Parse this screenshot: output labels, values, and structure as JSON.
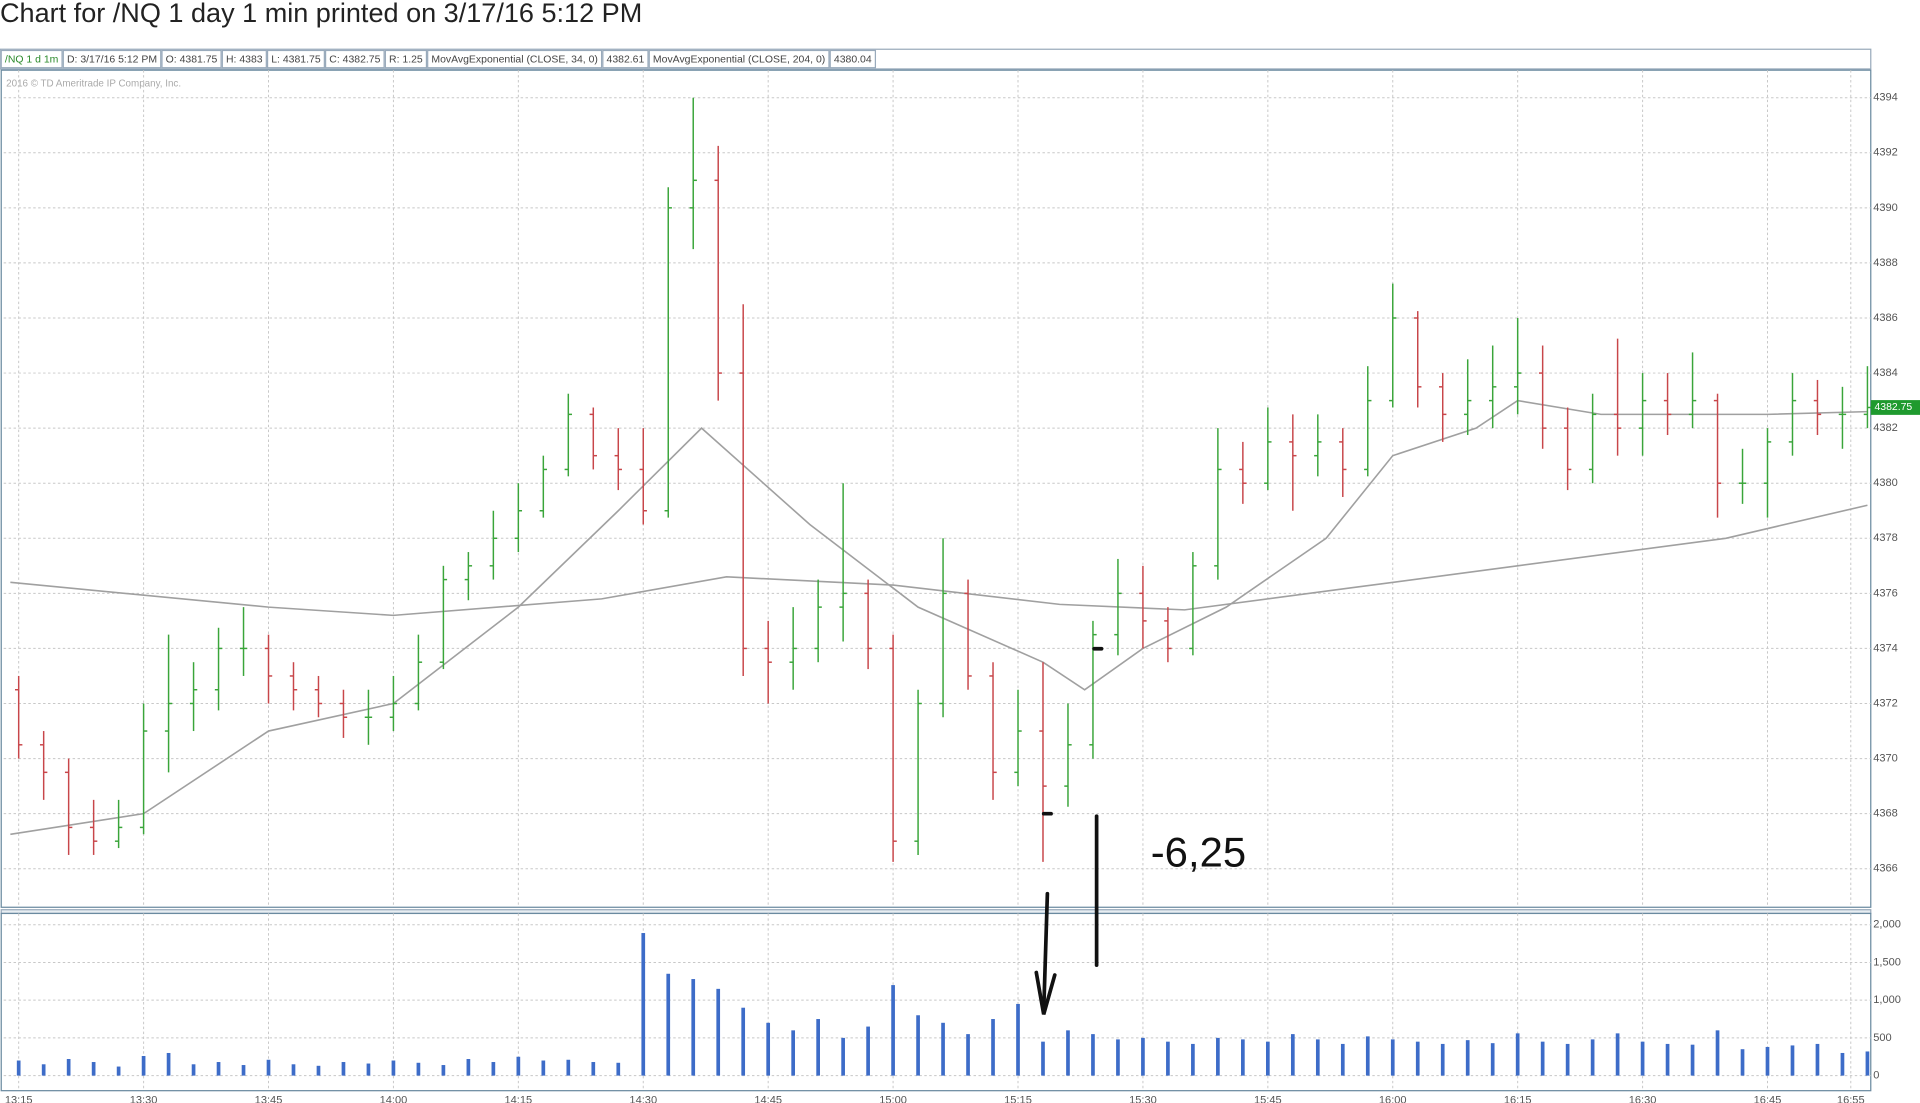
{
  "chart_data": [
    {
      "type": "ohlc",
      "title": "Chart for /NQ 1 day 1 min printed on 3/17/16 5:12 PM",
      "legend_boxes": [
        "/NQ 1 d 1m",
        "D: 3/17/16 5:12 PM",
        "O: 4381.75",
        "H: 4383",
        "L: 4381.75",
        "C: 4382.75",
        "R: 1.25",
        "MovAvgExponential (CLOSE, 34, 0)",
        "4382.61",
        "MovAvgExponential (CLOSE, 204, 0)",
        "4380.04"
      ],
      "copyright": "2016 © TD Ameritrade IP Company, Inc.",
      "annotation": "-6,25",
      "last_price": {
        "value": 4382.75,
        "label": "4382.75"
      },
      "up_color": "#3aa53a",
      "down_color": "#c8464a",
      "line_color": "#a0a0a0",
      "x": [
        795,
        798,
        801,
        804,
        807,
        810,
        813,
        816,
        819,
        822,
        825,
        828,
        831,
        834,
        837,
        840,
        843,
        846,
        849,
        852,
        855,
        858,
        861,
        864,
        867,
        870,
        873,
        876,
        879,
        882,
        885,
        888,
        891,
        894,
        897,
        900,
        903,
        906,
        909,
        912,
        915,
        918,
        921,
        924,
        927,
        930,
        933,
        936,
        939,
        942,
        945,
        948,
        951,
        954,
        957,
        960,
        963,
        966,
        969,
        972,
        975,
        978,
        981,
        984,
        987,
        990,
        993,
        996,
        999,
        1002,
        1005,
        1008,
        1011,
        1014,
        1017
      ],
      "open": [
        4372.5,
        4370.5,
        4369.5,
        4367.5,
        4367,
        4367.5,
        4371,
        4372,
        4372.5,
        4374,
        4374,
        4373,
        4372.5,
        4372,
        4371.5,
        4371.5,
        4372,
        4373.5,
        4376.5,
        4377,
        4378,
        4379,
        4380.5,
        4382.5,
        4381,
        4380.5,
        4379,
        4390,
        4391,
        4384,
        4374,
        4373.5,
        4374,
        4375.5,
        4376,
        4374,
        4367,
        4372,
        4376,
        4373,
        4369.5,
        4371,
        4369,
        4370.5,
        4374.5,
        4376,
        4375,
        4374,
        4377,
        4380.5,
        4380,
        4381.5,
        4381,
        4381.5,
        4380.5,
        4383,
        4386,
        4383.5,
        4382.5,
        4383,
        4383.5,
        4384,
        4382,
        4380.5,
        4382.5,
        4382,
        4383,
        4382.5,
        4383,
        4380,
        4380,
        4381.5,
        4383,
        4382.5,
        4382.5
      ],
      "high": [
        4373,
        4371,
        4370,
        4368.5,
        4368.5,
        4372,
        4374.5,
        4373.5,
        4374.75,
        4375.5,
        4374.5,
        4373.5,
        4373,
        4372.5,
        4372.5,
        4373,
        4374.5,
        4377,
        4377.5,
        4379,
        4380,
        4381,
        4383.25,
        4382.75,
        4382,
        4382,
        4390.75,
        4394,
        4392.25,
        4386.5,
        4375,
        4375.5,
        4376.5,
        4380,
        4376.5,
        4374.5,
        4372.5,
        4378,
        4376.5,
        4373.5,
        4372.5,
        4373.5,
        4372,
        4375,
        4377.25,
        4377,
        4375.5,
        4377.5,
        4382,
        4381.5,
        4382.75,
        4382.5,
        4382.5,
        4382,
        4384.25,
        4387.25,
        4386.25,
        4384,
        4384.5,
        4385,
        4386,
        4385,
        4382.75,
        4383.25,
        4385.25,
        4384,
        4384,
        4384.75,
        4383.25,
        4381.25,
        4382,
        4384,
        4383.75,
        4383.5,
        4384.25
      ],
      "low": [
        4370,
        4368.5,
        4366.5,
        4366.5,
        4366.75,
        4367.25,
        4369.5,
        4371,
        4371.75,
        4373,
        4372,
        4371.75,
        4371.5,
        4370.75,
        4370.5,
        4371,
        4371.75,
        4373.25,
        4375.75,
        4376.5,
        4377.5,
        4378.75,
        4380.25,
        4380.5,
        4379.75,
        4378.5,
        4378.75,
        4388.5,
        4383,
        4373,
        4372,
        4372.5,
        4373.5,
        4374.25,
        4373.25,
        4366.25,
        4366.5,
        4371.5,
        4372.5,
        4368.5,
        4369,
        4366.25,
        4368.25,
        4370,
        4373.75,
        4374,
        4373.5,
        4373.75,
        4376.5,
        4379.25,
        4379.75,
        4379,
        4380.25,
        4379.5,
        4380.25,
        4382.75,
        4382.75,
        4381.5,
        4381.75,
        4382,
        4382.5,
        4381.25,
        4379.75,
        4380,
        4381,
        4381,
        4381.75,
        4382,
        4378.75,
        4379.25,
        4378.75,
        4381,
        4381.75,
        4381.25,
        4382
      ],
      "close": [
        4370.5,
        4369.5,
        4367.5,
        4367,
        4367.5,
        4371,
        4372,
        4372.5,
        4374,
        4374,
        4373,
        4372.5,
        4372,
        4371.5,
        4371.5,
        4372,
        4373.5,
        4376.5,
        4377,
        4378,
        4379,
        4380.5,
        4382.5,
        4381,
        4380.5,
        4379,
        4390,
        4391,
        4384,
        4374,
        4373.5,
        4374,
        4375.5,
        4376,
        4374,
        4367,
        4372,
        4376,
        4373,
        4369.5,
        4371,
        4369,
        4370.5,
        4374.5,
        4376,
        4375,
        4374,
        4377,
        4380.5,
        4380,
        4381.5,
        4381,
        4381.5,
        4380.5,
        4383,
        4386,
        4383.5,
        4382.5,
        4383,
        4383.5,
        4384,
        4382,
        4380.5,
        4382.5,
        4382,
        4383,
        4382.5,
        4383,
        4380,
        4380,
        4381.5,
        4383,
        4382.5,
        4382.5,
        4382.75
      ],
      "lines": [
        {
          "name": "MovAvgExponential (CLOSE, 34, 0)",
          "x": [
            794,
            810,
            825,
            840,
            855,
            867,
            877,
            890,
            903,
            918,
            923,
            930,
            940,
            952,
            960,
            970,
            975,
            985,
            1005,
            1017
          ],
          "values": [
            4367.25,
            4368,
            4371,
            4372,
            4375.5,
            4379,
            4382,
            4378.5,
            4375.5,
            4373.5,
            4372.5,
            4374,
            4375.5,
            4378,
            4381,
            4382,
            4383,
            4382.5,
            4382.5,
            4382.6
          ]
        },
        {
          "name": "MovAvgExponential (CLOSE, 204, 0)",
          "x": [
            794,
            825,
            840,
            865,
            880,
            900,
            920,
            935,
            955,
            975,
            1000,
            1017
          ],
          "values": [
            4376.4,
            4375.5,
            4375.2,
            4375.8,
            4376.6,
            4376.3,
            4375.6,
            4375.4,
            4376.2,
            4377,
            4378,
            4379.2
          ]
        }
      ],
      "xlim": [
        793.2,
        1017.4
      ],
      "xticks": [
        {
          "value": 795,
          "label": "13:15"
        },
        {
          "value": 810,
          "label": "13:30"
        },
        {
          "value": 825,
          "label": "13:45"
        },
        {
          "value": 840,
          "label": "14:00"
        },
        {
          "value": 855,
          "label": "14:15"
        },
        {
          "value": 870,
          "label": "14:30"
        },
        {
          "value": 885,
          "label": "14:45"
        },
        {
          "value": 900,
          "label": "15:00"
        },
        {
          "value": 915,
          "label": "15:15"
        },
        {
          "value": 930,
          "label": "15:30"
        },
        {
          "value": 945,
          "label": "15:45"
        },
        {
          "value": 960,
          "label": "16:00"
        },
        {
          "value": 975,
          "label": "16:15"
        },
        {
          "value": 990,
          "label": "16:30"
        },
        {
          "value": 1005,
          "label": "16:45"
        },
        {
          "value": 1015,
          "label": "16:55"
        }
      ],
      "ylim": [
        4364.6,
        4395
      ],
      "yticks": [
        4366,
        4368,
        4370,
        4372,
        4374,
        4376,
        4378,
        4380,
        4382,
        4384,
        4386,
        4388,
        4390,
        4392,
        4394
      ],
      "grid": true
    },
    {
      "type": "bar",
      "color": "#3d6cc8",
      "values": [
        200,
        150,
        220,
        180,
        120,
        260,
        300,
        150,
        180,
        140,
        210,
        150,
        130,
        180,
        160,
        200,
        170,
        140,
        220,
        180,
        250,
        200,
        210,
        180,
        170,
        1890,
        1350,
        1280,
        1150,
        900,
        700,
        600,
        750,
        500,
        650,
        1200,
        800,
        700,
        550,
        750,
        950,
        450,
        600,
        550,
        480,
        500,
        450,
        420,
        500,
        480,
        450,
        550,
        480,
        420,
        520,
        480,
        450,
        420,
        470,
        430,
        560,
        450,
        420,
        480,
        560,
        450,
        420,
        410,
        600,
        350,
        380,
        400,
        420,
        300,
        320
      ],
      "ylim": [
        -200,
        2150
      ],
      "yticks": [
        0,
        500,
        {
          "value": 1000,
          "label": "1,000"
        },
        {
          "value": 1500,
          "label": "1,500"
        },
        {
          "value": 2000,
          "label": "2,000"
        }
      ],
      "grid": true
    }
  ]
}
